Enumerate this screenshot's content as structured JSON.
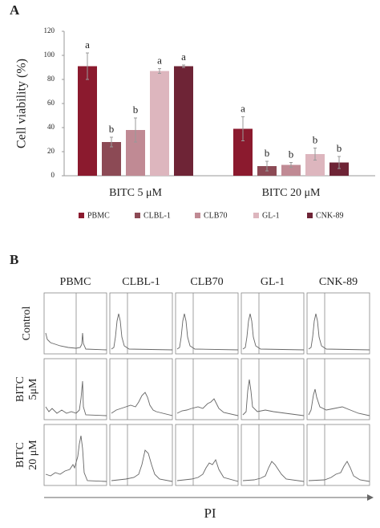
{
  "panel_a_label": "A",
  "chart_data": {
    "type": "bar",
    "y_label": "Cell viability (%)",
    "categories": [
      "BITC 5 μM",
      "BITC 20 μM"
    ],
    "series": [
      {
        "name": "PBMC",
        "color": "#8b1a2e",
        "values": [
          91,
          39
        ],
        "errors": [
          11,
          10
        ],
        "significance": [
          "a",
          "a"
        ]
      },
      {
        "name": "CLBL-1",
        "color": "#8c4a55",
        "values": [
          28,
          8
        ],
        "errors": [
          4,
          4
        ],
        "significance": [
          "b",
          "b"
        ]
      },
      {
        "name": "CLB70",
        "color": "#c08a94",
        "values": [
          38,
          9
        ],
        "errors": [
          10,
          2
        ],
        "significance": [
          "b",
          "b"
        ]
      },
      {
        "name": "GL-1",
        "color": "#ddb6be",
        "values": [
          87,
          18
        ],
        "errors": [
          2,
          5
        ],
        "significance": [
          "a",
          "b"
        ]
      },
      {
        "name": "CNK-89",
        "color": "#6e2436",
        "values": [
          91,
          11
        ],
        "errors": [
          1,
          5
        ],
        "significance": [
          "a",
          "b"
        ]
      }
    ],
    "ylim": [
      0,
      120
    ],
    "yticks": [
      0,
      20,
      40,
      60,
      80,
      100,
      120
    ],
    "legend": "bottom"
  },
  "panel_b": {
    "label": "B",
    "columns": [
      "PBMC",
      "CLBL-1",
      "CLB70",
      "GL-1",
      "CNK-89"
    ],
    "rows": [
      [
        "Control"
      ],
      [
        "BITC",
        "5μM"
      ],
      [
        "BITC",
        "20 μM"
      ]
    ],
    "x_label": "PI"
  }
}
